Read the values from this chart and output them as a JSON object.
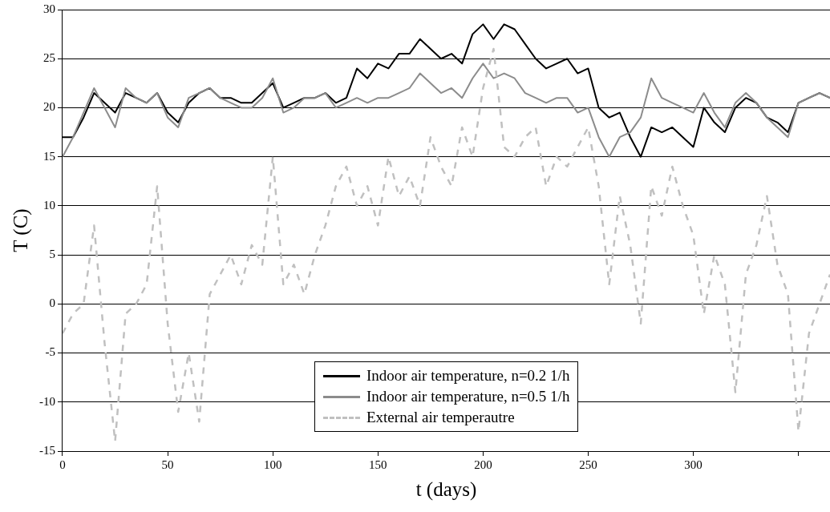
{
  "chart_data": {
    "type": "line",
    "xlabel": "t (days)",
    "ylabel": "T (C)",
    "x": [
      0,
      5,
      10,
      15,
      20,
      25,
      30,
      35,
      40,
      45,
      50,
      55,
      60,
      65,
      70,
      75,
      80,
      85,
      90,
      95,
      100,
      105,
      110,
      115,
      120,
      125,
      130,
      135,
      140,
      145,
      150,
      155,
      160,
      165,
      170,
      175,
      180,
      185,
      190,
      195,
      200,
      205,
      210,
      215,
      220,
      225,
      230,
      235,
      240,
      245,
      250,
      255,
      260,
      265,
      270,
      275,
      280,
      285,
      290,
      295,
      300,
      305,
      310,
      315,
      320,
      325,
      330,
      335,
      340,
      345,
      350,
      355,
      360,
      365
    ],
    "xlim": [
      0,
      365
    ],
    "xticks": [
      0,
      50,
      100,
      150,
      200,
      250,
      300,
      {
        "value": 350,
        "label": null
      }
    ],
    "ylim": [
      -15,
      30
    ],
    "yticks": [
      -15,
      -10,
      -5,
      0,
      5,
      10,
      15,
      20,
      25,
      30
    ],
    "grid": "y",
    "legend": "bottom",
    "marker": "none",
    "series": [
      {
        "name": "Indoor air temperature, n=0.2 1/h",
        "color": "#000000",
        "line_style": "solid",
        "values": [
          17,
          17,
          19,
          21.5,
          20.5,
          19.5,
          21.5,
          21,
          20.5,
          21.5,
          19.5,
          18.5,
          20.5,
          21.5,
          22,
          21,
          21,
          20.5,
          20.5,
          21.5,
          22.5,
          20,
          20.5,
          21,
          21,
          21.5,
          20.5,
          21,
          24,
          23,
          24.5,
          24,
          25.5,
          25.5,
          27,
          26,
          25,
          25.5,
          24.5,
          27.5,
          28.5,
          27,
          28.5,
          28,
          26.5,
          25,
          24,
          24.5,
          25,
          23.5,
          24,
          20,
          19,
          19.5,
          17,
          15,
          18,
          17.5,
          18,
          17,
          16,
          20,
          18.5,
          17.5,
          20,
          21,
          20.5,
          19,
          18.5,
          17.5,
          20.5,
          21,
          21.5,
          21
        ]
      },
      {
        "name": "Indoor air temperature, n=0.5 1/h",
        "color": "#8c8c8c",
        "line_style": "solid",
        "values": [
          15,
          17,
          19.5,
          22,
          20,
          18,
          22,
          21,
          20.5,
          21.5,
          19,
          18,
          21,
          21.5,
          22,
          21,
          20.5,
          20,
          20,
          21,
          23,
          19.5,
          20,
          21,
          21,
          21.5,
          20,
          20.5,
          21,
          20.5,
          21,
          21,
          21.5,
          22,
          23.5,
          22.5,
          21.5,
          22,
          21,
          23,
          24.5,
          23,
          23.5,
          23,
          21.5,
          21,
          20.5,
          21,
          21,
          19.5,
          20,
          17,
          15,
          17,
          17.5,
          19,
          23,
          21,
          20.5,
          20,
          19.5,
          21.5,
          19.5,
          18,
          20.5,
          21.5,
          20.5,
          19,
          18,
          17,
          20.5,
          21,
          21.5,
          21
        ]
      },
      {
        "name": "External air temperautre",
        "color": "#c0c0c0",
        "line_style": "dashed",
        "values": [
          -3,
          -1,
          0,
          8,
          -4,
          -14,
          -1,
          0,
          2,
          12,
          -2,
          -11,
          -5,
          -12,
          1,
          3,
          5,
          2,
          6,
          4,
          15,
          2,
          4,
          1,
          5,
          8,
          12,
          14,
          10,
          12,
          8,
          15,
          11,
          13,
          10,
          17,
          14,
          12,
          18,
          15,
          22,
          26,
          16,
          15,
          17,
          18,
          12,
          15,
          14,
          16,
          18,
          12,
          2,
          11,
          6,
          -2,
          12,
          9,
          14,
          10,
          7,
          -1,
          5,
          2,
          -9,
          3,
          6,
          11,
          4,
          1,
          -13,
          -3,
          0,
          3
        ]
      }
    ]
  }
}
